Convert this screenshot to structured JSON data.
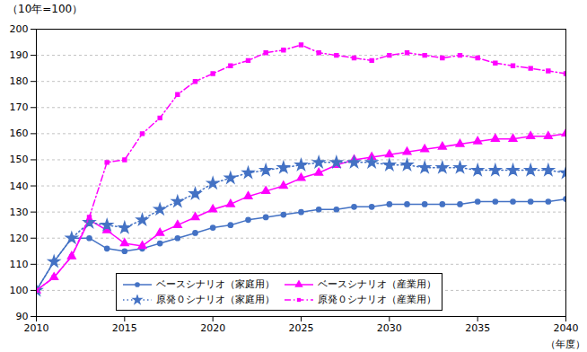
{
  "chart_data": {
    "type": "line",
    "title": "（10年=100）",
    "xlabel": "（年度）",
    "xlim": [
      2010,
      2040
    ],
    "xticks": [
      2010,
      2015,
      2020,
      2025,
      2030,
      2035,
      2040
    ],
    "ylim": [
      90,
      200
    ],
    "yticks": [
      90,
      100,
      110,
      120,
      130,
      140,
      150,
      160,
      170,
      180,
      190,
      200
    ],
    "grid": true,
    "legend": "lower left",
    "x": [
      2010,
      2011,
      2012,
      2013,
      2014,
      2015,
      2016,
      2017,
      2018,
      2019,
      2020,
      2021,
      2022,
      2023,
      2024,
      2025,
      2026,
      2027,
      2028,
      2029,
      2030,
      2031,
      2032,
      2033,
      2034,
      2035,
      2036,
      2037,
      2038,
      2039,
      2040
    ],
    "series": [
      {
        "name": "ベースシナリオ（家庭用）",
        "color": "#4472c4",
        "marker": "circle",
        "line_style": "solid",
        "values": [
          100,
          111,
          120,
          120,
          116,
          115,
          116,
          118,
          120,
          122,
          124,
          125,
          127,
          128,
          129,
          130,
          131,
          131,
          132,
          132,
          133,
          133,
          133,
          133,
          133,
          134,
          134,
          134,
          134,
          134,
          135
        ]
      },
      {
        "name": "ベースシナリオ（産業用）",
        "color": "#ff00ff",
        "marker": "triangle",
        "line_style": "solid",
        "values": [
          100,
          105,
          113,
          127,
          123,
          118,
          117,
          122,
          125,
          128,
          131,
          133,
          136,
          138,
          140,
          143,
          145,
          148,
          150,
          151,
          152,
          153,
          154,
          155,
          156,
          157,
          158,
          158,
          159,
          159,
          160
        ]
      },
      {
        "name": "原発０シナリオ（家庭用）",
        "color": "#4472c4",
        "marker": "star",
        "line_style": "dotted",
        "values": [
          100,
          111,
          120,
          126,
          125,
          124,
          127,
          131,
          134,
          137,
          141,
          143,
          145,
          146,
          147,
          148,
          149,
          149,
          149,
          149,
          148,
          148,
          147,
          147,
          147,
          146,
          146,
          146,
          146,
          146,
          145
        ]
      },
      {
        "name": "原発０シナリオ（産業用）",
        "color": "#ff00ff",
        "marker": "square",
        "line_style": "dashdot",
        "values": [
          100,
          105,
          113,
          128,
          149,
          150,
          160,
          166,
          175,
          180,
          183,
          186,
          188,
          191,
          192,
          194,
          191,
          190,
          189,
          188,
          190,
          191,
          190,
          189,
          190,
          189,
          187,
          186,
          185,
          184,
          183
        ]
      }
    ]
  }
}
